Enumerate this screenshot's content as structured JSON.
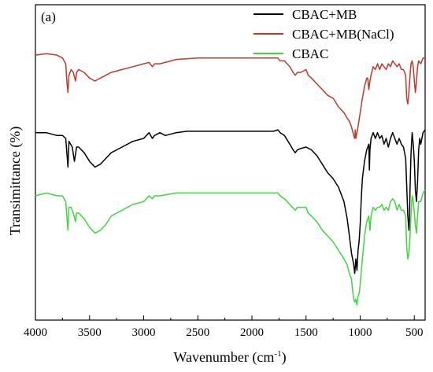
{
  "chart_data": {
    "type": "line",
    "panel_label": "(a)",
    "xlabel": "Wavenumber (cm",
    "xlabel_sup": "-1",
    "xlabel_end": ")",
    "ylabel": "Transimittance (%)",
    "xlim": [
      4000,
      400
    ],
    "x_reversed": true,
    "ylim": [
      0,
      100
    ],
    "y_ticks_labeled": false,
    "x_ticks": [
      4000,
      3500,
      3000,
      2500,
      2000,
      1500,
      1000,
      500
    ],
    "x_tick_labels": [
      "4000",
      "3500",
      "3000",
      "2500",
      "2000",
      "1500",
      "1000",
      "500"
    ],
    "legend_position": "top-right",
    "series": [
      {
        "name": "CBAC+MB",
        "color": "#000000",
        "points": [
          [
            4000,
            62
          ],
          [
            3900,
            62
          ],
          [
            3800,
            61
          ],
          [
            3750,
            61
          ],
          [
            3720,
            60
          ],
          [
            3700,
            50
          ],
          [
            3690,
            59
          ],
          [
            3660,
            57
          ],
          [
            3640,
            52
          ],
          [
            3620,
            57
          ],
          [
            3600,
            57
          ],
          [
            3550,
            55
          ],
          [
            3500,
            52
          ],
          [
            3450,
            50
          ],
          [
            3400,
            51
          ],
          [
            3350,
            53
          ],
          [
            3300,
            55
          ],
          [
            3200,
            57
          ],
          [
            3100,
            59
          ],
          [
            3000,
            60
          ],
          [
            2950,
            62
          ],
          [
            2920,
            60
          ],
          [
            2900,
            61
          ],
          [
            2850,
            62
          ],
          [
            2800,
            61
          ],
          [
            2700,
            62
          ],
          [
            2600,
            62.5
          ],
          [
            2500,
            62.5
          ],
          [
            2400,
            62.5
          ],
          [
            2300,
            62.5
          ],
          [
            2200,
            62.5
          ],
          [
            2100,
            62.5
          ],
          [
            2000,
            62.5
          ],
          [
            1900,
            62.5
          ],
          [
            1800,
            62.5
          ],
          [
            1760,
            63
          ],
          [
            1740,
            62
          ],
          [
            1700,
            61
          ],
          [
            1650,
            58
          ],
          [
            1620,
            56
          ],
          [
            1600,
            55
          ],
          [
            1580,
            56
          ],
          [
            1550,
            56.5
          ],
          [
            1500,
            57
          ],
          [
            1450,
            56
          ],
          [
            1400,
            54
          ],
          [
            1350,
            51
          ],
          [
            1300,
            48
          ],
          [
            1250,
            46
          ],
          [
            1200,
            43
          ],
          [
            1150,
            38
          ],
          [
            1120,
            32
          ],
          [
            1100,
            26
          ],
          [
            1080,
            20
          ],
          [
            1060,
            16
          ],
          [
            1050,
            13
          ],
          [
            1040,
            18
          ],
          [
            1030,
            14
          ],
          [
            1020,
            21
          ],
          [
            1010,
            24
          ],
          [
            1000,
            30
          ],
          [
            990,
            39
          ],
          [
            980,
            46
          ],
          [
            960,
            52
          ],
          [
            940,
            56
          ],
          [
            920,
            58
          ],
          [
            915,
            49
          ],
          [
            910,
            56
          ],
          [
            900,
            60
          ],
          [
            880,
            62
          ],
          [
            860,
            60
          ],
          [
            840,
            62
          ],
          [
            820,
            60
          ],
          [
            800,
            61
          ],
          [
            780,
            58
          ],
          [
            760,
            60
          ],
          [
            740,
            57
          ],
          [
            720,
            60
          ],
          [
            700,
            62
          ],
          [
            680,
            60
          ],
          [
            660,
            58
          ],
          [
            640,
            60
          ],
          [
            620,
            58
          ],
          [
            600,
            57
          ],
          [
            580,
            53
          ],
          [
            560,
            33
          ],
          [
            550,
            28
          ],
          [
            545,
            32
          ],
          [
            540,
            42
          ],
          [
            530,
            55
          ],
          [
            520,
            62
          ],
          [
            510,
            58
          ],
          [
            500,
            52
          ],
          [
            490,
            42
          ],
          [
            480,
            38
          ],
          [
            470,
            45
          ],
          [
            460,
            56
          ],
          [
            450,
            60
          ],
          [
            440,
            58
          ],
          [
            420,
            62
          ],
          [
            400,
            63
          ]
        ]
      },
      {
        "name": "CBAC+MB(NaCl)",
        "color": "#c0392b",
        "points": [
          [
            4000,
            89
          ],
          [
            3900,
            89.5
          ],
          [
            3800,
            89
          ],
          [
            3750,
            88
          ],
          [
            3720,
            86
          ],
          [
            3710,
            80
          ],
          [
            3700,
            76
          ],
          [
            3690,
            82
          ],
          [
            3670,
            84
          ],
          [
            3650,
            83
          ],
          [
            3630,
            80
          ],
          [
            3620,
            83
          ],
          [
            3600,
            84
          ],
          [
            3550,
            83
          ],
          [
            3500,
            81
          ],
          [
            3450,
            80
          ],
          [
            3400,
            81
          ],
          [
            3300,
            83
          ],
          [
            3200,
            84
          ],
          [
            3100,
            85
          ],
          [
            3000,
            86
          ],
          [
            2950,
            86.5
          ],
          [
            2920,
            85
          ],
          [
            2900,
            86
          ],
          [
            2850,
            86
          ],
          [
            2700,
            87.5
          ],
          [
            2500,
            88
          ],
          [
            2300,
            88
          ],
          [
            2100,
            88
          ],
          [
            1900,
            88
          ],
          [
            1800,
            88
          ],
          [
            1760,
            88
          ],
          [
            1740,
            87
          ],
          [
            1700,
            87
          ],
          [
            1650,
            85
          ],
          [
            1620,
            83
          ],
          [
            1600,
            82
          ],
          [
            1580,
            83
          ],
          [
            1550,
            83
          ],
          [
            1500,
            84
          ],
          [
            1480,
            82
          ],
          [
            1450,
            81
          ],
          [
            1400,
            79
          ],
          [
            1350,
            77
          ],
          [
            1300,
            75
          ],
          [
            1250,
            74
          ],
          [
            1200,
            71
          ],
          [
            1150,
            69
          ],
          [
            1120,
            67
          ],
          [
            1100,
            66
          ],
          [
            1080,
            64
          ],
          [
            1060,
            61
          ],
          [
            1050,
            60
          ],
          [
            1045,
            63
          ],
          [
            1040,
            60
          ],
          [
            1030,
            62
          ],
          [
            1020,
            64
          ],
          [
            1000,
            69
          ],
          [
            980,
            74
          ],
          [
            960,
            78
          ],
          [
            940,
            81
          ],
          [
            930,
            81
          ],
          [
            920,
            77
          ],
          [
            910,
            80
          ],
          [
            900,
            82
          ],
          [
            880,
            85
          ],
          [
            860,
            84
          ],
          [
            840,
            86
          ],
          [
            820,
            84
          ],
          [
            800,
            86
          ],
          [
            780,
            85
          ],
          [
            760,
            84
          ],
          [
            740,
            86
          ],
          [
            720,
            85
          ],
          [
            700,
            87
          ],
          [
            680,
            86
          ],
          [
            660,
            85
          ],
          [
            640,
            86
          ],
          [
            620,
            84
          ],
          [
            600,
            84
          ],
          [
            580,
            82
          ],
          [
            570,
            74
          ],
          [
            560,
            72
          ],
          [
            550,
            76
          ],
          [
            540,
            82
          ],
          [
            530,
            86
          ],
          [
            520,
            87
          ],
          [
            510,
            85
          ],
          [
            500,
            80
          ],
          [
            490,
            76
          ],
          [
            480,
            80
          ],
          [
            470,
            85
          ],
          [
            460,
            87
          ],
          [
            440,
            86
          ],
          [
            420,
            88
          ],
          [
            400,
            88
          ]
        ]
      },
      {
        "name": "CBAC",
        "color": "#3fd63f",
        "points": [
          [
            4000,
            40
          ],
          [
            3900,
            41
          ],
          [
            3800,
            40
          ],
          [
            3750,
            40
          ],
          [
            3720,
            38
          ],
          [
            3700,
            28
          ],
          [
            3690,
            36
          ],
          [
            3670,
            36
          ],
          [
            3650,
            34
          ],
          [
            3630,
            31
          ],
          [
            3620,
            34
          ],
          [
            3600,
            34
          ],
          [
            3550,
            32
          ],
          [
            3500,
            29
          ],
          [
            3450,
            27
          ],
          [
            3400,
            28
          ],
          [
            3350,
            30
          ],
          [
            3300,
            33
          ],
          [
            3200,
            35
          ],
          [
            3100,
            37
          ],
          [
            3000,
            38
          ],
          [
            2950,
            40
          ],
          [
            2920,
            39
          ],
          [
            2900,
            40
          ],
          [
            2850,
            40
          ],
          [
            2700,
            41
          ],
          [
            2500,
            41
          ],
          [
            2300,
            41
          ],
          [
            2100,
            41
          ],
          [
            1900,
            41
          ],
          [
            1800,
            41
          ],
          [
            1760,
            41
          ],
          [
            1740,
            40
          ],
          [
            1700,
            39
          ],
          [
            1650,
            37
          ],
          [
            1600,
            35
          ],
          [
            1580,
            36
          ],
          [
            1550,
            36
          ],
          [
            1500,
            36
          ],
          [
            1480,
            34
          ],
          [
            1450,
            33
          ],
          [
            1400,
            31
          ],
          [
            1350,
            28
          ],
          [
            1300,
            26
          ],
          [
            1250,
            24
          ],
          [
            1200,
            21
          ],
          [
            1150,
            18
          ],
          [
            1120,
            16
          ],
          [
            1100,
            13
          ],
          [
            1080,
            11
          ],
          [
            1070,
            7
          ],
          [
            1060,
            4
          ],
          [
            1050,
            3
          ],
          [
            1040,
            4
          ],
          [
            1030,
            2
          ],
          [
            1020,
            5
          ],
          [
            1010,
            6
          ],
          [
            1000,
            9
          ],
          [
            990,
            14
          ],
          [
            980,
            18
          ],
          [
            960,
            26
          ],
          [
            940,
            31
          ],
          [
            920,
            33
          ],
          [
            910,
            28
          ],
          [
            900,
            33
          ],
          [
            880,
            36
          ],
          [
            860,
            35
          ],
          [
            840,
            36
          ],
          [
            820,
            36
          ],
          [
            800,
            37
          ],
          [
            780,
            35
          ],
          [
            760,
            36
          ],
          [
            740,
            35
          ],
          [
            720,
            38
          ],
          [
            700,
            39
          ],
          [
            680,
            38
          ],
          [
            660,
            35
          ],
          [
            640,
            37
          ],
          [
            620,
            35
          ],
          [
            600,
            35
          ],
          [
            580,
            33
          ],
          [
            570,
            22
          ],
          [
            560,
            18
          ],
          [
            550,
            20
          ],
          [
            540,
            26
          ],
          [
            530,
            34
          ],
          [
            520,
            40
          ],
          [
            510,
            38
          ],
          [
            500,
            34
          ],
          [
            490,
            30
          ],
          [
            480,
            27
          ],
          [
            470,
            33
          ],
          [
            460,
            38
          ],
          [
            440,
            38
          ],
          [
            420,
            41
          ],
          [
            400,
            42
          ]
        ]
      }
    ]
  }
}
